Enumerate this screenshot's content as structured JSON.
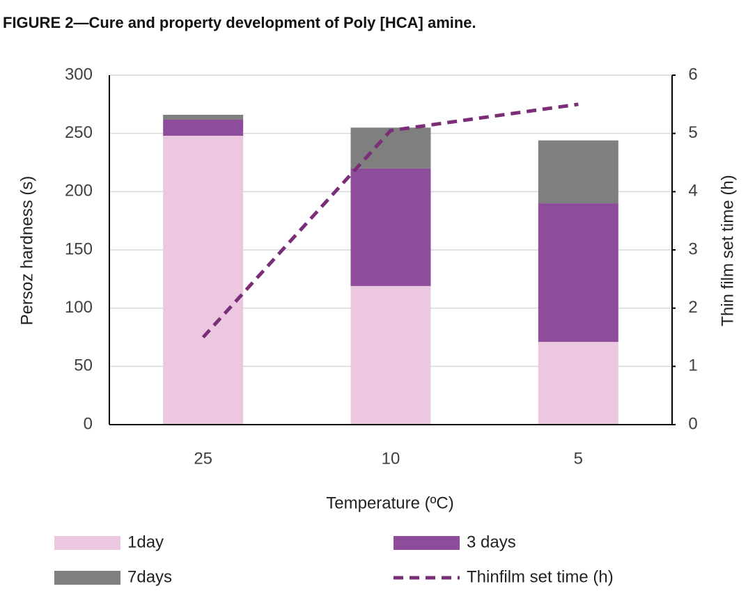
{
  "chart_data": {
    "type": "bar",
    "stacked": true,
    "title": "FIGURE 2—Cure and property development of Poly [HCA] amine.",
    "x_label": "Temperature (ºC)",
    "y_label": "Persoz hardness (s)",
    "y2_label": "Thin film set time (h)",
    "categories": [
      "25",
      "10",
      "5"
    ],
    "series": [
      {
        "name": "1day",
        "type": "bar",
        "color": "#ecc8e0",
        "values": [
          248,
          119,
          71
        ]
      },
      {
        "name": "3 days",
        "type": "bar",
        "color": "#8e4d9b",
        "values": [
          14,
          101,
          119
        ]
      },
      {
        "name": "7days",
        "type": "bar",
        "color": "#7f7f7f",
        "values": [
          4,
          35,
          54
        ]
      },
      {
        "name": "Thinfilm set time (h)",
        "type": "line",
        "axis": "y2",
        "dashed": true,
        "color": "#7b2e78",
        "values": [
          1.5,
          5.05,
          5.5
        ]
      }
    ],
    "ylim": [
      0,
      300
    ],
    "yticks": [
      0,
      50,
      100,
      150,
      200,
      250,
      300
    ],
    "y2lim": [
      0,
      6
    ],
    "y2ticks": [
      0,
      1,
      2,
      3,
      4,
      5,
      6
    ],
    "grid": true,
    "legend": "bottom"
  }
}
